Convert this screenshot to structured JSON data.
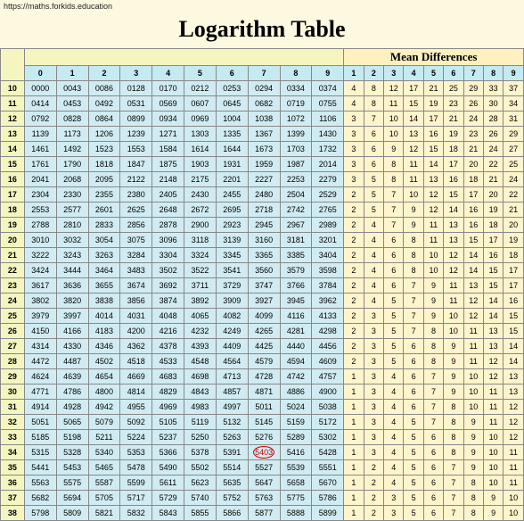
{
  "url": "https://maths.forkids.education",
  "title": "Logarithm Table",
  "mean_header": "Mean Differences",
  "main_cols": [
    "0",
    "1",
    "2",
    "3",
    "4",
    "5",
    "6",
    "7",
    "8",
    "9"
  ],
  "diff_cols": [
    "1",
    "2",
    "3",
    "4",
    "5",
    "6",
    "7",
    "8",
    "9"
  ],
  "rows": [
    {
      "n": "10",
      "m": [
        "0000",
        "0043",
        "0086",
        "0128",
        "0170",
        "0212",
        "0253",
        "0294",
        "0334",
        "0374"
      ],
      "d": [
        "4",
        "8",
        "12",
        "17",
        "21",
        "25",
        "29",
        "33",
        "37"
      ]
    },
    {
      "n": "11",
      "m": [
        "0414",
        "0453",
        "0492",
        "0531",
        "0569",
        "0607",
        "0645",
        "0682",
        "0719",
        "0755"
      ],
      "d": [
        "4",
        "8",
        "11",
        "15",
        "19",
        "23",
        "26",
        "30",
        "34"
      ]
    },
    {
      "n": "12",
      "m": [
        "0792",
        "0828",
        "0864",
        "0899",
        "0934",
        "0969",
        "1004",
        "1038",
        "1072",
        "1106"
      ],
      "d": [
        "3",
        "7",
        "10",
        "14",
        "17",
        "21",
        "24",
        "28",
        "31"
      ]
    },
    {
      "n": "13",
      "m": [
        "1139",
        "1173",
        "1206",
        "1239",
        "1271",
        "1303",
        "1335",
        "1367",
        "1399",
        "1430"
      ],
      "d": [
        "3",
        "6",
        "10",
        "13",
        "16",
        "19",
        "23",
        "26",
        "29"
      ]
    },
    {
      "n": "14",
      "m": [
        "1461",
        "1492",
        "1523",
        "1553",
        "1584",
        "1614",
        "1644",
        "1673",
        "1703",
        "1732"
      ],
      "d": [
        "3",
        "6",
        "9",
        "12",
        "15",
        "18",
        "21",
        "24",
        "27"
      ]
    },
    {
      "n": "15",
      "m": [
        "1761",
        "1790",
        "1818",
        "1847",
        "1875",
        "1903",
        "1931",
        "1959",
        "1987",
        "2014"
      ],
      "d": [
        "3",
        "6",
        "8",
        "11",
        "14",
        "17",
        "20",
        "22",
        "25"
      ]
    },
    {
      "n": "16",
      "m": [
        "2041",
        "2068",
        "2095",
        "2122",
        "2148",
        "2175",
        "2201",
        "2227",
        "2253",
        "2279"
      ],
      "d": [
        "3",
        "5",
        "8",
        "11",
        "13",
        "16",
        "18",
        "21",
        "24"
      ]
    },
    {
      "n": "17",
      "m": [
        "2304",
        "2330",
        "2355",
        "2380",
        "2405",
        "2430",
        "2455",
        "2480",
        "2504",
        "2529"
      ],
      "d": [
        "2",
        "5",
        "7",
        "10",
        "12",
        "15",
        "17",
        "20",
        "22"
      ]
    },
    {
      "n": "18",
      "m": [
        "2553",
        "2577",
        "2601",
        "2625",
        "2648",
        "2672",
        "2695",
        "2718",
        "2742",
        "2765"
      ],
      "d": [
        "2",
        "5",
        "7",
        "9",
        "12",
        "14",
        "16",
        "19",
        "21"
      ]
    },
    {
      "n": "19",
      "m": [
        "2788",
        "2810",
        "2833",
        "2856",
        "2878",
        "2900",
        "2923",
        "2945",
        "2967",
        "2989"
      ],
      "d": [
        "2",
        "4",
        "7",
        "9",
        "11",
        "13",
        "16",
        "18",
        "20"
      ]
    },
    {
      "n": "20",
      "m": [
        "3010",
        "3032",
        "3054",
        "3075",
        "3096",
        "3118",
        "3139",
        "3160",
        "3181",
        "3201"
      ],
      "d": [
        "2",
        "4",
        "6",
        "8",
        "11",
        "13",
        "15",
        "17",
        "19"
      ]
    },
    {
      "n": "21",
      "m": [
        "3222",
        "3243",
        "3263",
        "3284",
        "3304",
        "3324",
        "3345",
        "3365",
        "3385",
        "3404"
      ],
      "d": [
        "2",
        "4",
        "6",
        "8",
        "10",
        "12",
        "14",
        "16",
        "18"
      ]
    },
    {
      "n": "22",
      "m": [
        "3424",
        "3444",
        "3464",
        "3483",
        "3502",
        "3522",
        "3541",
        "3560",
        "3579",
        "3598"
      ],
      "d": [
        "2",
        "4",
        "6",
        "8",
        "10",
        "12",
        "14",
        "15",
        "17"
      ]
    },
    {
      "n": "23",
      "m": [
        "3617",
        "3636",
        "3655",
        "3674",
        "3692",
        "3711",
        "3729",
        "3747",
        "3766",
        "3784"
      ],
      "d": [
        "2",
        "4",
        "6",
        "7",
        "9",
        "11",
        "13",
        "15",
        "17"
      ]
    },
    {
      "n": "24",
      "m": [
        "3802",
        "3820",
        "3838",
        "3856",
        "3874",
        "3892",
        "3909",
        "3927",
        "3945",
        "3962"
      ],
      "d": [
        "2",
        "4",
        "5",
        "7",
        "9",
        "11",
        "12",
        "14",
        "16"
      ]
    },
    {
      "n": "25",
      "m": [
        "3979",
        "3997",
        "4014",
        "4031",
        "4048",
        "4065",
        "4082",
        "4099",
        "4116",
        "4133"
      ],
      "d": [
        "2",
        "3",
        "5",
        "7",
        "9",
        "10",
        "12",
        "14",
        "15"
      ]
    },
    {
      "n": "26",
      "m": [
        "4150",
        "4166",
        "4183",
        "4200",
        "4216",
        "4232",
        "4249",
        "4265",
        "4281",
        "4298"
      ],
      "d": [
        "2",
        "3",
        "5",
        "7",
        "8",
        "10",
        "11",
        "13",
        "15"
      ]
    },
    {
      "n": "27",
      "m": [
        "4314",
        "4330",
        "4346",
        "4362",
        "4378",
        "4393",
        "4409",
        "4425",
        "4440",
        "4456"
      ],
      "d": [
        "2",
        "3",
        "5",
        "6",
        "8",
        "9",
        "11",
        "13",
        "14"
      ]
    },
    {
      "n": "28",
      "m": [
        "4472",
        "4487",
        "4502",
        "4518",
        "4533",
        "4548",
        "4564",
        "4579",
        "4594",
        "4609"
      ],
      "d": [
        "2",
        "3",
        "5",
        "6",
        "8",
        "9",
        "11",
        "12",
        "14"
      ]
    },
    {
      "n": "29",
      "m": [
        "4624",
        "4639",
        "4654",
        "4669",
        "4683",
        "4698",
        "4713",
        "4728",
        "4742",
        "4757"
      ],
      "d": [
        "1",
        "3",
        "4",
        "6",
        "7",
        "9",
        "10",
        "12",
        "13"
      ]
    },
    {
      "n": "30",
      "m": [
        "4771",
        "4786",
        "4800",
        "4814",
        "4829",
        "4843",
        "4857",
        "4871",
        "4886",
        "4900"
      ],
      "d": [
        "1",
        "3",
        "4",
        "6",
        "7",
        "9",
        "10",
        "11",
        "13"
      ]
    },
    {
      "n": "31",
      "m": [
        "4914",
        "4928",
        "4942",
        "4955",
        "4969",
        "4983",
        "4997",
        "5011",
        "5024",
        "5038"
      ],
      "d": [
        "1",
        "3",
        "4",
        "6",
        "7",
        "8",
        "10",
        "11",
        "12"
      ]
    },
    {
      "n": "32",
      "m": [
        "5051",
        "5065",
        "5079",
        "5092",
        "5105",
        "5119",
        "5132",
        "5145",
        "5159",
        "5172"
      ],
      "d": [
        "1",
        "3",
        "4",
        "5",
        "7",
        "8",
        "9",
        "11",
        "12"
      ]
    },
    {
      "n": "33",
      "m": [
        "5185",
        "5198",
        "5211",
        "5224",
        "5237",
        "5250",
        "5263",
        "5276",
        "5289",
        "5302"
      ],
      "d": [
        "1",
        "3",
        "4",
        "5",
        "6",
        "8",
        "9",
        "10",
        "12"
      ]
    },
    {
      "n": "34",
      "m": [
        "5315",
        "5328",
        "5340",
        "5353",
        "5366",
        "5378",
        "5391",
        "5403",
        "5416",
        "5428"
      ],
      "d": [
        "1",
        "3",
        "4",
        "5",
        "6",
        "8",
        "9",
        "10",
        "11"
      ]
    },
    {
      "n": "35",
      "m": [
        "5441",
        "5453",
        "5465",
        "5478",
        "5490",
        "5502",
        "5514",
        "5527",
        "5539",
        "5551"
      ],
      "d": [
        "1",
        "2",
        "4",
        "5",
        "6",
        "7",
        "9",
        "10",
        "11"
      ]
    },
    {
      "n": "36",
      "m": [
        "5563",
        "5575",
        "5587",
        "5599",
        "5611",
        "5623",
        "5635",
        "5647",
        "5658",
        "5670"
      ],
      "d": [
        "1",
        "2",
        "4",
        "5",
        "6",
        "7",
        "8",
        "10",
        "11"
      ]
    },
    {
      "n": "37",
      "m": [
        "5682",
        "5694",
        "5705",
        "5717",
        "5729",
        "5740",
        "5752",
        "5763",
        "5775",
        "5786"
      ],
      "d": [
        "1",
        "2",
        "3",
        "5",
        "6",
        "7",
        "8",
        "9",
        "10"
      ]
    },
    {
      "n": "38",
      "m": [
        "5798",
        "5809",
        "5821",
        "5832",
        "5843",
        "5855",
        "5866",
        "5877",
        "5888",
        "5899"
      ],
      "d": [
        "1",
        "2",
        "3",
        "5",
        "6",
        "7",
        "8",
        "9",
        "10"
      ]
    }
  ],
  "highlight": {
    "row": "34",
    "col": 7
  }
}
